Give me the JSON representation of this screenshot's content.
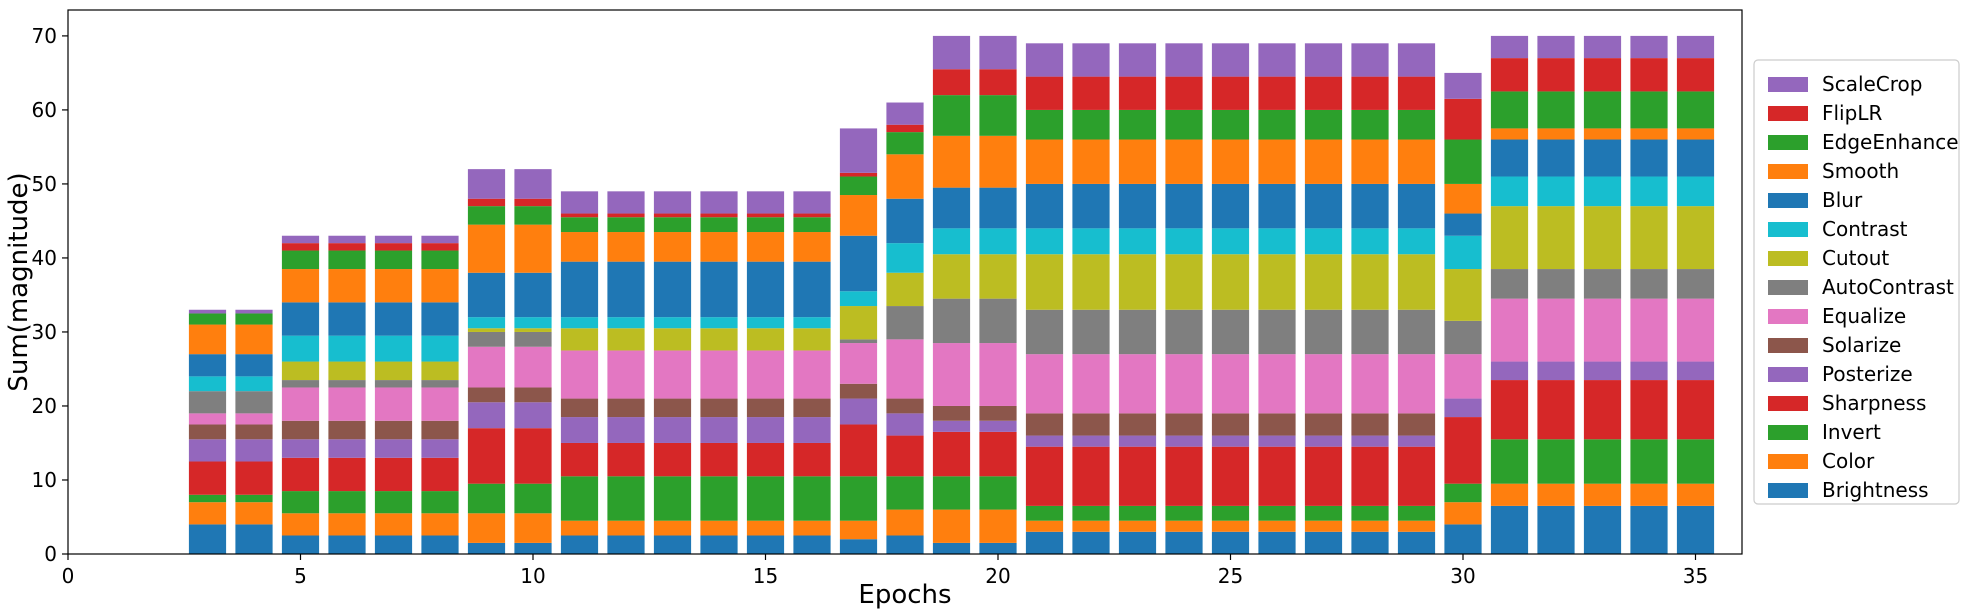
{
  "chart_data": {
    "type": "bar",
    "stacked": true,
    "xlabel": "Epochs",
    "ylabel": "Sum(magnitude)",
    "xlim": [
      0,
      36
    ],
    "ylim": [
      0,
      73.5
    ],
    "x_ticks": [
      0,
      5,
      10,
      15,
      20,
      25,
      30,
      35
    ],
    "y_ticks": [
      0,
      10,
      20,
      30,
      40,
      50,
      60,
      70
    ],
    "legend_position": "center-right",
    "grid": false,
    "x": [
      3,
      4,
      5,
      6,
      7,
      8,
      9,
      10,
      11,
      12,
      13,
      14,
      15,
      16,
      17,
      18,
      19,
      20,
      21,
      22,
      23,
      24,
      25,
      26,
      27,
      28,
      29,
      30,
      31,
      32,
      33,
      34,
      35
    ],
    "series": [
      {
        "name": "Brightness",
        "color": "#1f77b4",
        "values": [
          4,
          4,
          2.5,
          2.5,
          2.5,
          2.5,
          1.5,
          1.5,
          2.5,
          2.5,
          2.5,
          2.5,
          2.5,
          2.5,
          2,
          2.5,
          1.5,
          1.5,
          3,
          3,
          3,
          3,
          3,
          3,
          3,
          3,
          3,
          4,
          6.5,
          6.5,
          6.5,
          6.5,
          6.5
        ]
      },
      {
        "name": "Color",
        "color": "#ff7f0e",
        "values": [
          3,
          3,
          3,
          3,
          3,
          3,
          4,
          4,
          2,
          2,
          2,
          2,
          2,
          2,
          2.5,
          3.5,
          4.5,
          4.5,
          1.5,
          1.5,
          1.5,
          1.5,
          1.5,
          1.5,
          1.5,
          1.5,
          1.5,
          3,
          3,
          3,
          3,
          3,
          3
        ]
      },
      {
        "name": "Invert",
        "color": "#2ca02c",
        "values": [
          1,
          1,
          3,
          3,
          3,
          3,
          4,
          4,
          6,
          6,
          6,
          6,
          6,
          6,
          6,
          4.5,
          4.5,
          4.5,
          2,
          2,
          2,
          2,
          2,
          2,
          2,
          2,
          2,
          2.5,
          6,
          6,
          6,
          6,
          6
        ]
      },
      {
        "name": "Sharpness",
        "color": "#d62728",
        "values": [
          4.5,
          4.5,
          4.5,
          4.5,
          4.5,
          4.5,
          7.5,
          7.5,
          4.5,
          4.5,
          4.5,
          4.5,
          4.5,
          4.5,
          7,
          5.5,
          6,
          6,
          8,
          8,
          8,
          8,
          8,
          8,
          8,
          8,
          8,
          9,
          8,
          8,
          8,
          8,
          8
        ]
      },
      {
        "name": "Posterize",
        "color": "#9467bd",
        "values": [
          3,
          3,
          2.5,
          2.5,
          2.5,
          2.5,
          3.5,
          3.5,
          3.5,
          3.5,
          3.5,
          3.5,
          3.5,
          3.5,
          3.5,
          3,
          1.5,
          1.5,
          1.5,
          1.5,
          1.5,
          1.5,
          1.5,
          1.5,
          1.5,
          1.5,
          1.5,
          2.5,
          2.5,
          2.5,
          2.5,
          2.5,
          2.5
        ]
      },
      {
        "name": "Solarize",
        "color": "#8c564b",
        "values": [
          2,
          2,
          2.5,
          2.5,
          2.5,
          2.5,
          2,
          2,
          2.5,
          2.5,
          2.5,
          2.5,
          2.5,
          2.5,
          2,
          2,
          2,
          2,
          3,
          3,
          3,
          3,
          3,
          3,
          3,
          3,
          3,
          0,
          0,
          0,
          0,
          0,
          0
        ]
      },
      {
        "name": "Equalize",
        "color": "#e377c2",
        "values": [
          1.5,
          1.5,
          4.5,
          4.5,
          4.5,
          4.5,
          5.5,
          5.5,
          6.5,
          6.5,
          6.5,
          6.5,
          6.5,
          6.5,
          5.5,
          8,
          8.5,
          8.5,
          8,
          8,
          8,
          8,
          8,
          8,
          8,
          8,
          8,
          6,
          8.5,
          8.5,
          8.5,
          8.5,
          8.5
        ]
      },
      {
        "name": "AutoContrast",
        "color": "#7f7f7f",
        "values": [
          3,
          3,
          1,
          1,
          1,
          1,
          2,
          2,
          0,
          0,
          0,
          0,
          0,
          0,
          0.5,
          4.5,
          6,
          6,
          6,
          6,
          6,
          6,
          6,
          6,
          6,
          6,
          6,
          4.5,
          4,
          4,
          4,
          4,
          4
        ]
      },
      {
        "name": "Cutout",
        "color": "#bcbd22",
        "values": [
          0,
          0,
          2.5,
          2.5,
          2.5,
          2.5,
          0.5,
          0.5,
          3,
          3,
          3,
          3,
          3,
          3,
          4.5,
          4.5,
          6,
          6,
          7.5,
          7.5,
          7.5,
          7.5,
          7.5,
          7.5,
          7.5,
          7.5,
          7.5,
          7,
          8.5,
          8.5,
          8.5,
          8.5,
          8.5
        ]
      },
      {
        "name": "Contrast",
        "color": "#17becf",
        "values": [
          2,
          2,
          3.5,
          3.5,
          3.5,
          3.5,
          1.5,
          1.5,
          1.5,
          1.5,
          1.5,
          1.5,
          1.5,
          1.5,
          2,
          4,
          3.5,
          3.5,
          3.5,
          3.5,
          3.5,
          3.5,
          3.5,
          3.5,
          3.5,
          3.5,
          3.5,
          4.5,
          4,
          4,
          4,
          4,
          4
        ]
      },
      {
        "name": "Blur",
        "color": "#1f77b4",
        "values": [
          3,
          3,
          4.5,
          4.5,
          4.5,
          4.5,
          6,
          6,
          7.5,
          7.5,
          7.5,
          7.5,
          7.5,
          7.5,
          7.5,
          6,
          5.5,
          5.5,
          6,
          6,
          6,
          6,
          6,
          6,
          6,
          6,
          6,
          3,
          5,
          5,
          5,
          5,
          5
        ]
      },
      {
        "name": "Smooth",
        "color": "#ff7f0e",
        "values": [
          4,
          4,
          4.5,
          4.5,
          4.5,
          4.5,
          6.5,
          6.5,
          4,
          4,
          4,
          4,
          4,
          4,
          5.5,
          6,
          7,
          7,
          6,
          6,
          6,
          6,
          6,
          6,
          6,
          6,
          6,
          4,
          1.5,
          1.5,
          1.5,
          1.5,
          1.5
        ]
      },
      {
        "name": "EdgeEnhance",
        "color": "#2ca02c",
        "values": [
          1.5,
          1.5,
          2.5,
          2.5,
          2.5,
          2.5,
          2.5,
          2.5,
          2,
          2,
          2,
          2,
          2,
          2,
          2.5,
          3,
          5.5,
          5.5,
          4,
          4,
          4,
          4,
          4,
          4,
          4,
          4,
          4,
          6,
          5,
          5,
          5,
          5,
          5
        ]
      },
      {
        "name": "FlipLR",
        "color": "#d62728",
        "values": [
          0,
          0,
          1,
          1,
          1,
          1,
          1,
          1,
          0.5,
          0.5,
          0.5,
          0.5,
          0.5,
          0.5,
          0.5,
          1,
          3.5,
          3.5,
          4.5,
          4.5,
          4.5,
          4.5,
          4.5,
          4.5,
          4.5,
          4.5,
          4.5,
          5.5,
          4.5,
          4.5,
          4.5,
          4.5,
          4.5
        ]
      },
      {
        "name": "ScaleCrop",
        "color": "#9467bd",
        "values": [
          0.5,
          0.5,
          1,
          1,
          1,
          1,
          4,
          4,
          3,
          3,
          3,
          3,
          3,
          3,
          6,
          3,
          4.5,
          4.5,
          4.5,
          4.5,
          4.5,
          4.5,
          4.5,
          4.5,
          4.5,
          4.5,
          4.5,
          3.5,
          3,
          3,
          3,
          3,
          3
        ]
      }
    ]
  }
}
